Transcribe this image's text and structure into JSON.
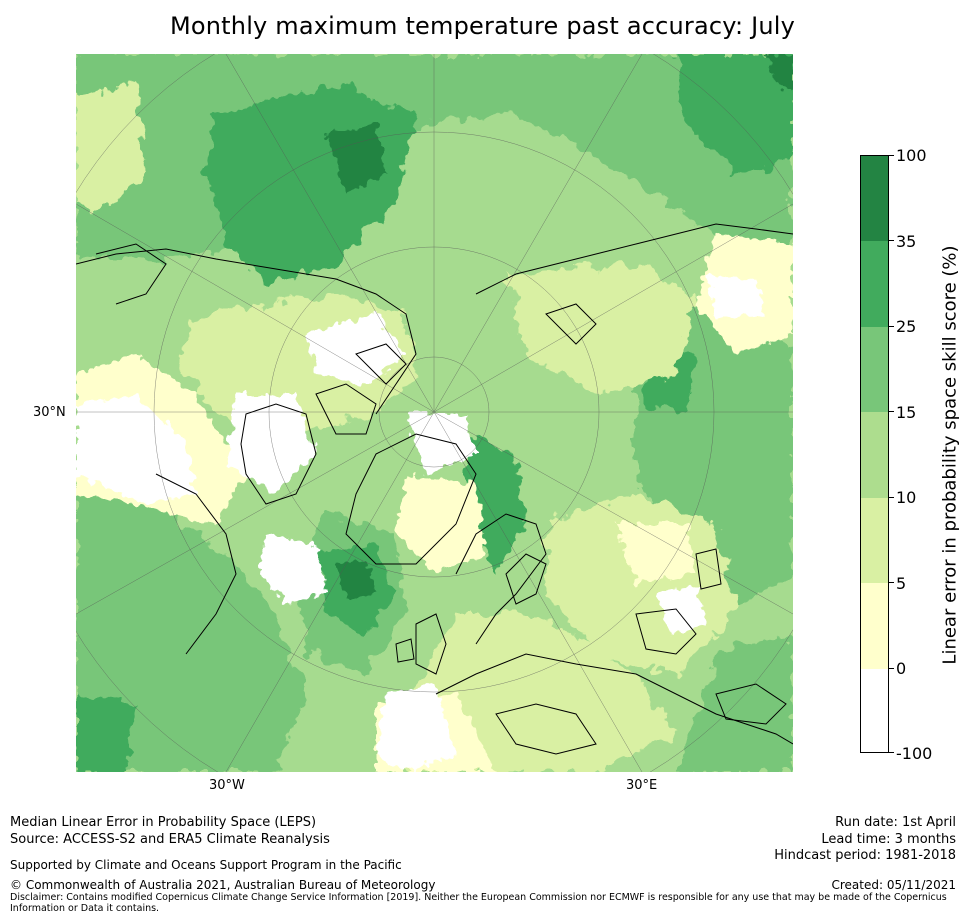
{
  "title": "Monthly maximum temperature past accuracy: July",
  "map": {
    "projection": "north-polar-stereographic",
    "lat_labels": [
      "30°N"
    ],
    "lon_labels": [
      "30°W",
      "30°E"
    ]
  },
  "colorbar": {
    "label": "Linear error in probability space skill score (%)",
    "ticks": [
      "100",
      "35",
      "25",
      "15",
      "10",
      "5",
      "0",
      "-100"
    ],
    "bins": [
      {
        "range": "35 to 100",
        "color": "#238443"
      },
      {
        "range": "25 to 35",
        "color": "#41ab5d"
      },
      {
        "range": "15 to 25",
        "color": "#78c679"
      },
      {
        "range": "10 to 15",
        "color": "#addd8e"
      },
      {
        "range": "5 to 10",
        "color": "#d9f0a3"
      },
      {
        "range": "0 to 5",
        "color": "#ffffcc"
      },
      {
        "range": "-100 to 0",
        "color": "#ffffff"
      }
    ]
  },
  "footer": {
    "line1": "Median Linear Error in Probability Space (LEPS)",
    "line2": "Source: ACCESS-S2 and ERA5 Climate Reanalysis",
    "support": "Supported by Climate and Oceans Support Program in the Pacific",
    "copyright": "© Commonwealth of Australia 2021, Australian Bureau of Meteorology",
    "disclaimer": "Disclaimer: Contains modified Copernicus Climate Change Service Information [2019]. Neither the European Commission nor ECMWF is responsible for any use that may be made of the Copernicus Information or Data it contains.",
    "run_date": "Run date: 1st April",
    "lead_time": "Lead time: 3 months",
    "hindcast": "Hindcast period: 1981-2018",
    "created": "Created: 05/11/2021"
  }
}
